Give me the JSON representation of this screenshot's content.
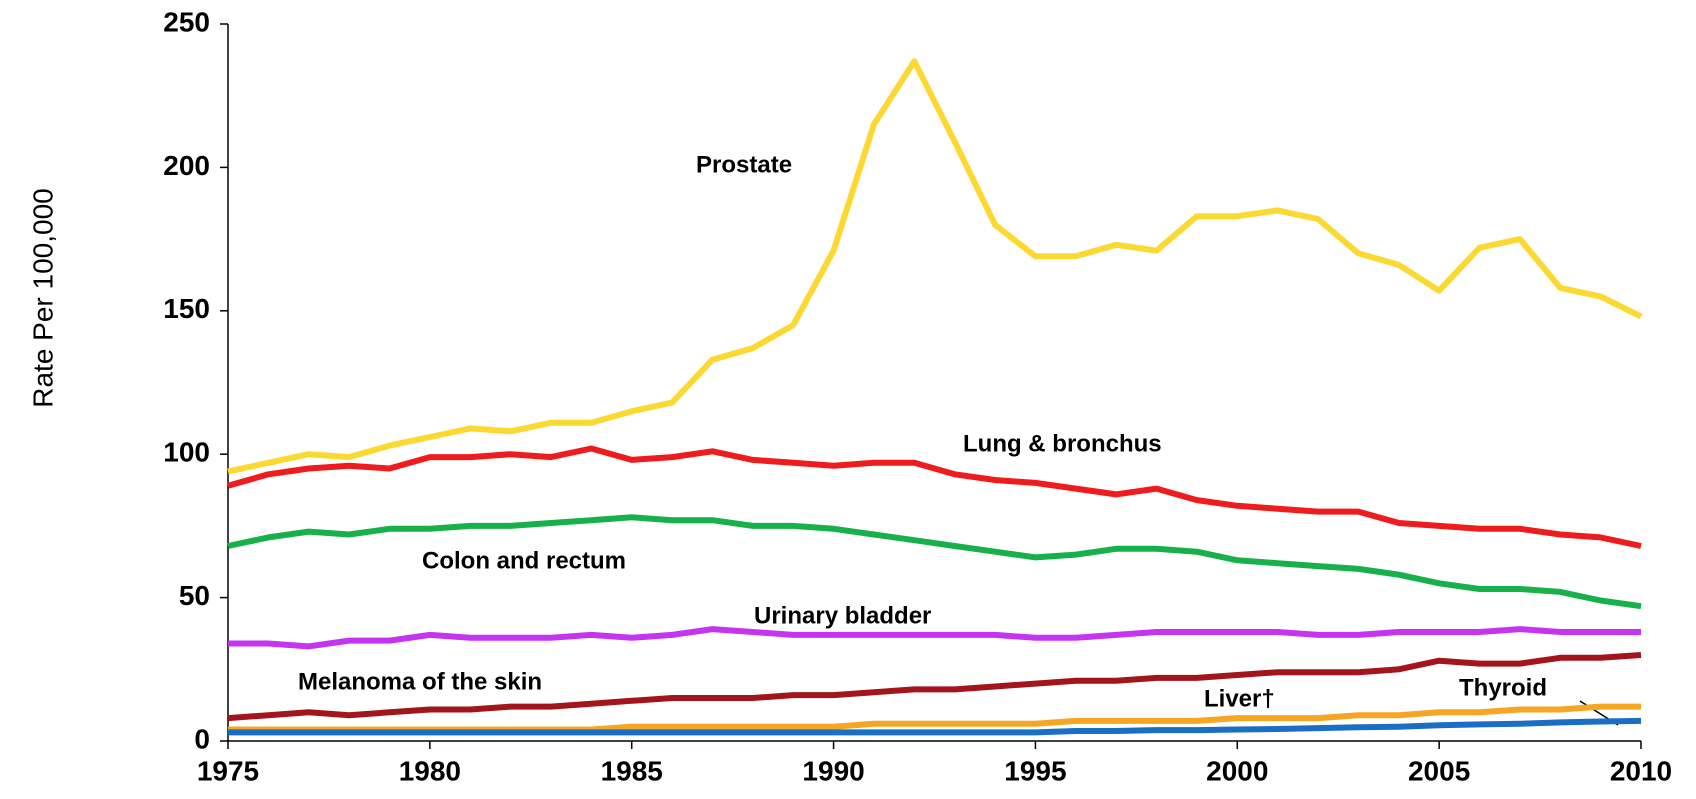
{
  "chart_data": {
    "type": "line",
    "y_label": "Rate Per 100,000",
    "x": [
      1975,
      1976,
      1977,
      1978,
      1979,
      1980,
      1981,
      1982,
      1983,
      1984,
      1985,
      1986,
      1987,
      1988,
      1989,
      1990,
      1991,
      1992,
      1993,
      1994,
      1995,
      1996,
      1997,
      1998,
      1999,
      2000,
      2001,
      2002,
      2003,
      2004,
      2005,
      2006,
      2007,
      2008,
      2009,
      2010
    ],
    "xlim": [
      1975,
      2010
    ],
    "xticks": [
      1975,
      1980,
      1985,
      1990,
      1995,
      2000,
      2005,
      2010
    ],
    "ylim": [
      0,
      250
    ],
    "yticks": [
      0,
      50,
      100,
      150,
      200,
      250
    ],
    "grid": false,
    "series": [
      {
        "name": "Prostate",
        "color": "#fcd932",
        "values": [
          94,
          97,
          100,
          99,
          103,
          106,
          109,
          108,
          111,
          111,
          115,
          118,
          133,
          137,
          145,
          171,
          215,
          237,
          209,
          180,
          169,
          169,
          173,
          171,
          183,
          183,
          185,
          182,
          170,
          166,
          157,
          172,
          175,
          158,
          155,
          148
        ]
      },
      {
        "name": "Lung & bronchus",
        "color": "#ee1c1c",
        "values": [
          89,
          93,
          95,
          96,
          95,
          99,
          99,
          100,
          99,
          102,
          98,
          99,
          101,
          98,
          97,
          96,
          97,
          97,
          93,
          91,
          90,
          88,
          86,
          88,
          84,
          82,
          81,
          80,
          80,
          76,
          75,
          74,
          74,
          72,
          71,
          68
        ]
      },
      {
        "name": "Colon and rectum",
        "color": "#17b04a",
        "values": [
          68,
          71,
          73,
          72,
          74,
          74,
          75,
          75,
          76,
          77,
          78,
          77,
          77,
          75,
          75,
          74,
          72,
          70,
          68,
          66,
          64,
          65,
          67,
          67,
          66,
          63,
          62,
          61,
          60,
          58,
          55,
          53,
          53,
          52,
          49,
          47
        ]
      },
      {
        "name": "Urinary bladder",
        "color": "#c535f0",
        "values": [
          34,
          34,
          33,
          35,
          35,
          37,
          36,
          36,
          36,
          37,
          36,
          37,
          39,
          38,
          37,
          37,
          37,
          37,
          37,
          37,
          36,
          36,
          37,
          38,
          38,
          38,
          38,
          37,
          37,
          38,
          38,
          38,
          39,
          38,
          38,
          38
        ]
      },
      {
        "name": "Melanoma of the skin",
        "color": "#a3141c",
        "values": [
          8,
          9,
          10,
          9,
          10,
          11,
          11,
          12,
          12,
          13,
          14,
          15,
          15,
          15,
          16,
          16,
          17,
          18,
          18,
          19,
          20,
          21,
          21,
          22,
          22,
          23,
          24,
          24,
          24,
          25,
          28,
          27,
          27,
          29,
          29,
          30
        ]
      },
      {
        "name": "Liver†",
        "color": "#f5a623",
        "values": [
          4,
          4,
          4,
          4,
          4,
          4,
          4,
          4,
          4,
          4,
          5,
          5,
          5,
          5,
          5,
          5,
          6,
          6,
          6,
          6,
          6,
          7,
          7,
          7,
          7,
          8,
          8,
          8,
          9,
          9,
          10,
          10,
          11,
          11,
          12,
          12
        ]
      },
      {
        "name": "Thyroid",
        "color": "#1a6fc4",
        "values": [
          3,
          3,
          3,
          3,
          3,
          3,
          3,
          3,
          3,
          3,
          3,
          3,
          3,
          3,
          3,
          3,
          3,
          3,
          3,
          3,
          3,
          3.5,
          3.5,
          3.8,
          3.8,
          4,
          4.2,
          4.5,
          4.8,
          5,
          5.5,
          5.8,
          6,
          6.5,
          6.8,
          7
        ]
      }
    ]
  }
}
